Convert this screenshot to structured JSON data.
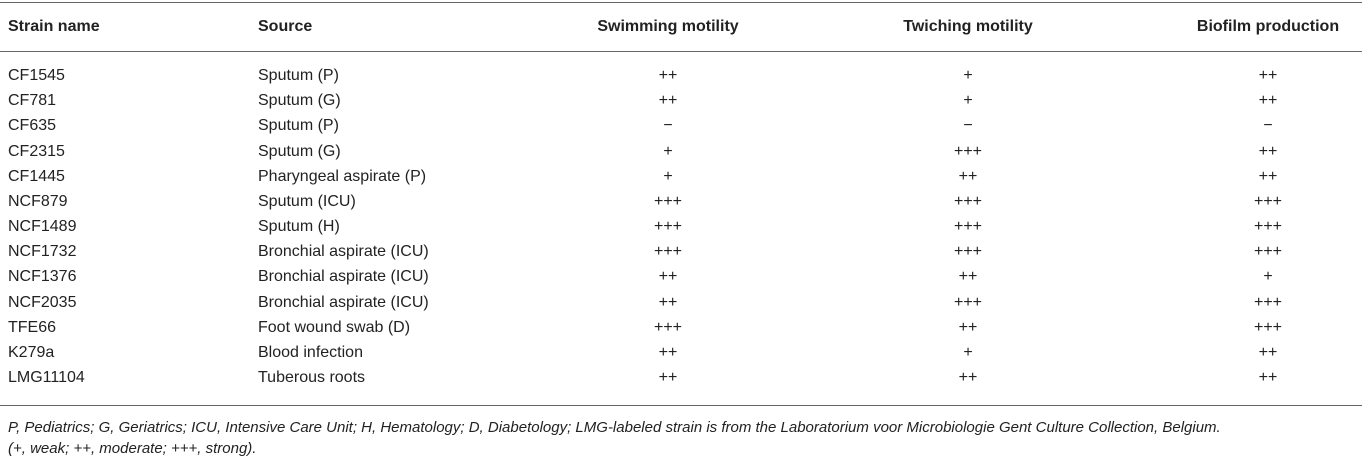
{
  "table": {
    "header": [
      "Strain name",
      "Source",
      "Swimming motility",
      "Twiching motility",
      "Biofilm production"
    ],
    "rows": [
      [
        "CF1545",
        "Sputum (P)",
        "++",
        "+",
        "++"
      ],
      [
        "CF781",
        "Sputum (G)",
        "++",
        "+",
        "++"
      ],
      [
        "CF635",
        "Sputum (P)",
        "−",
        "−",
        "−"
      ],
      [
        "CF2315",
        "Sputum (G)",
        "+",
        "+++",
        "++"
      ],
      [
        "CF1445",
        "Pharyngeal aspirate (P)",
        "+",
        "++",
        "++"
      ],
      [
        "NCF879",
        "Sputum (ICU)",
        "+++",
        "+++",
        "+++"
      ],
      [
        "NCF1489",
        "Sputum (H)",
        "+++",
        "+++",
        "+++"
      ],
      [
        "NCF1732",
        "Bronchial aspirate (ICU)",
        "+++",
        "+++",
        "+++"
      ],
      [
        "NCF1376",
        "Bronchial aspirate (ICU)",
        "++",
        "++",
        "+"
      ],
      [
        "NCF2035",
        "Bronchial aspirate (ICU)",
        "++",
        "+++",
        "+++"
      ],
      [
        "TFE66",
        "Foot wound swab (D)",
        "+++",
        "++",
        "+++"
      ],
      [
        "K279a",
        "Blood infection",
        "++",
        "+",
        "++"
      ],
      [
        "LMG11104",
        "Tuberous roots",
        "++",
        "++",
        "++"
      ]
    ],
    "footnote": [
      "P, Pediatrics; G, Geriatrics; ICU, Intensive Care Unit; H, Hematology; D, Diabetology; LMG-labeled strain is from the Laboratorium voor Microbiologie Gent Culture Collection, Belgium.",
      "(+, weak; ++, moderate; +++, strong)."
    ]
  }
}
